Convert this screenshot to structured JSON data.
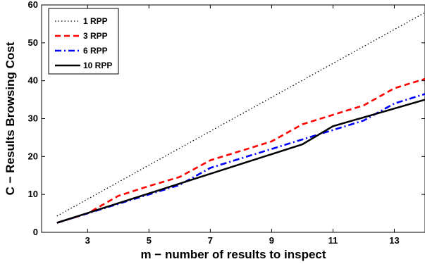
{
  "chart_data": {
    "type": "line",
    "xlabel": "m − number of results to inspect",
    "ylabel": "C − Results Browsing Cost",
    "xlim": [
      1.5,
      14
    ],
    "ylim": [
      0,
      60
    ],
    "xticks": [
      3,
      5,
      7,
      9,
      11,
      13
    ],
    "yticks": [
      0,
      10,
      20,
      30,
      40,
      50,
      60
    ],
    "grid": false,
    "legend_position": "top-left",
    "series": [
      {
        "name": "1 RPP",
        "color": "#000000",
        "style": "dotted",
        "x": [
          2,
          14
        ],
        "y": [
          4.3,
          58
        ]
      },
      {
        "name": "3 RPP",
        "color": "#ff0000",
        "style": "dashed",
        "x": [
          2,
          3,
          4,
          5,
          6,
          7,
          8,
          9,
          10,
          11,
          12,
          13,
          14
        ],
        "y": [
          2.5,
          5.0,
          9.6,
          12.2,
          14.6,
          19.0,
          21.5,
          24.0,
          28.5,
          31.0,
          33.5,
          38.0,
          40.5
        ]
      },
      {
        "name": "6 RPP",
        "color": "#0000ff",
        "style": "dashdot",
        "x": [
          2,
          3,
          4,
          5,
          6,
          7,
          8,
          9,
          10,
          11,
          12,
          13,
          14
        ],
        "y": [
          2.5,
          5.0,
          7.5,
          10.0,
          12.5,
          17.0,
          19.5,
          22.0,
          24.5,
          27.0,
          29.5,
          34.0,
          36.5
        ]
      },
      {
        "name": "10 RPP",
        "color": "#000000",
        "style": "solid",
        "x": [
          2,
          10,
          11,
          14
        ],
        "y": [
          2.5,
          23.2,
          28.0,
          35.0
        ]
      }
    ]
  }
}
